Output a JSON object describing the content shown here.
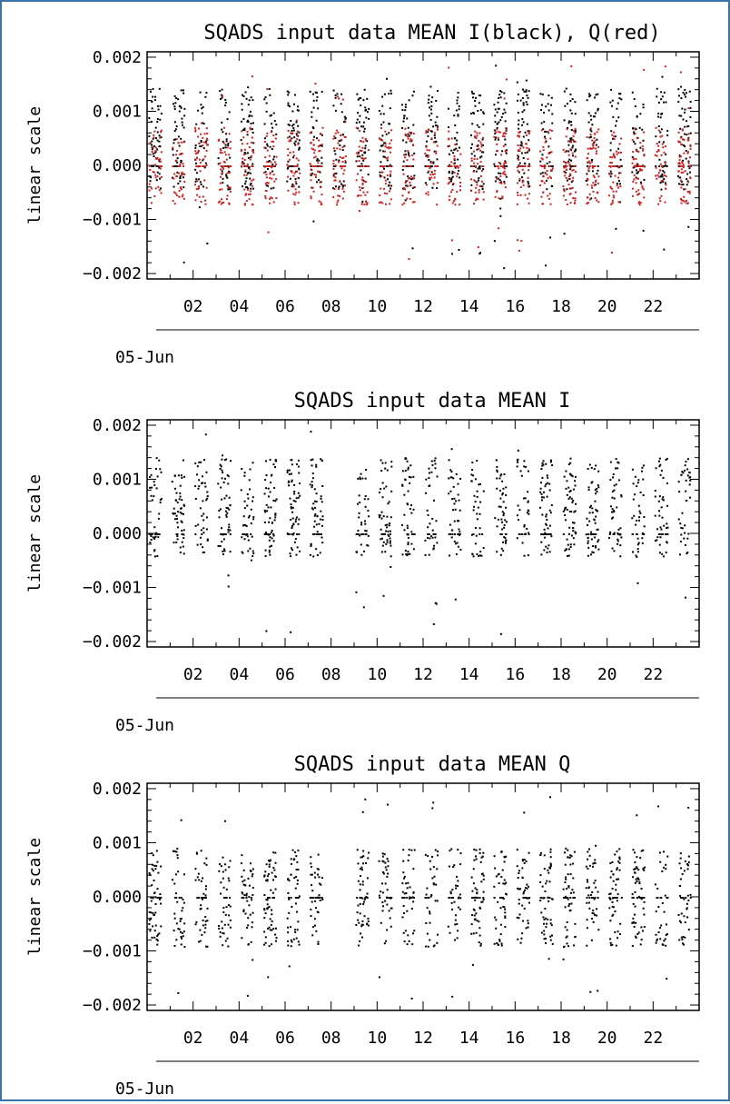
{
  "chart_data": [
    {
      "type": "scatter",
      "title": "SQADS input data MEAN I(black), Q(red)",
      "ylabel": "linear scale",
      "xlabel": "05-Jun",
      "x_tick_labels": [
        "02",
        "04",
        "06",
        "08",
        "10",
        "12",
        "14",
        "16",
        "18",
        "20",
        "22"
      ],
      "x_tick_hours": [
        2,
        4,
        6,
        8,
        10,
        12,
        14,
        16,
        18,
        20,
        22
      ],
      "xlim": [
        0,
        24
      ],
      "ylim": [
        -0.0021,
        0.0021
      ],
      "y_tick_labels": [
        "0.002",
        "0.001",
        "0.000",
        "−0.001",
        "−0.002"
      ],
      "y_tick_values": [
        0.002,
        0.001,
        0.0,
        -0.001,
        -0.002
      ],
      "grid": false,
      "series": [
        {
          "name": "I(black)",
          "color": "#000000",
          "spread": 0.00072,
          "center": 0.0005
        },
        {
          "name": "Q(red)",
          "color": "#cc2222",
          "spread": 0.00055,
          "center": 0.0
        }
      ]
    },
    {
      "type": "scatter",
      "title": "SQADS input data MEAN I",
      "ylabel": "linear scale",
      "xlabel": "05-Jun",
      "x_tick_labels": [
        "02",
        "04",
        "06",
        "08",
        "10",
        "12",
        "14",
        "16",
        "18",
        "20",
        "22"
      ],
      "x_tick_hours": [
        2,
        4,
        6,
        8,
        10,
        12,
        14,
        16,
        18,
        20,
        22
      ],
      "xlim": [
        0,
        24
      ],
      "ylim": [
        -0.0021,
        0.0021
      ],
      "y_tick_labels": [
        "0.002",
        "0.001",
        "0.000",
        "−0.001",
        "−0.002"
      ],
      "y_tick_values": [
        0.002,
        0.001,
        0.0,
        -0.001,
        -0.002
      ],
      "grid": false,
      "series": [
        {
          "color": "#000000",
          "spread": 0.0007,
          "center": 0.0005
        }
      ]
    },
    {
      "type": "scatter",
      "title": "SQADS input data MEAN Q",
      "ylabel": "linear scale",
      "xlabel": "05-Jun",
      "x_tick_labels": [
        "02",
        "04",
        "06",
        "08",
        "10",
        "12",
        "14",
        "16",
        "18",
        "20",
        "22"
      ],
      "x_tick_hours": [
        2,
        4,
        6,
        8,
        10,
        12,
        14,
        16,
        18,
        20,
        22
      ],
      "xlim": [
        0,
        24
      ],
      "ylim": [
        -0.0021,
        0.0021
      ],
      "y_tick_labels": [
        "0.002",
        "0.001",
        "0.000",
        "−0.001",
        "−0.002"
      ],
      "y_tick_values": [
        0.002,
        0.001,
        0.0,
        -0.001,
        -0.002
      ],
      "grid": false,
      "series": [
        {
          "color": "#000000",
          "spread": 0.0007,
          "center": 0.0
        }
      ]
    }
  ]
}
